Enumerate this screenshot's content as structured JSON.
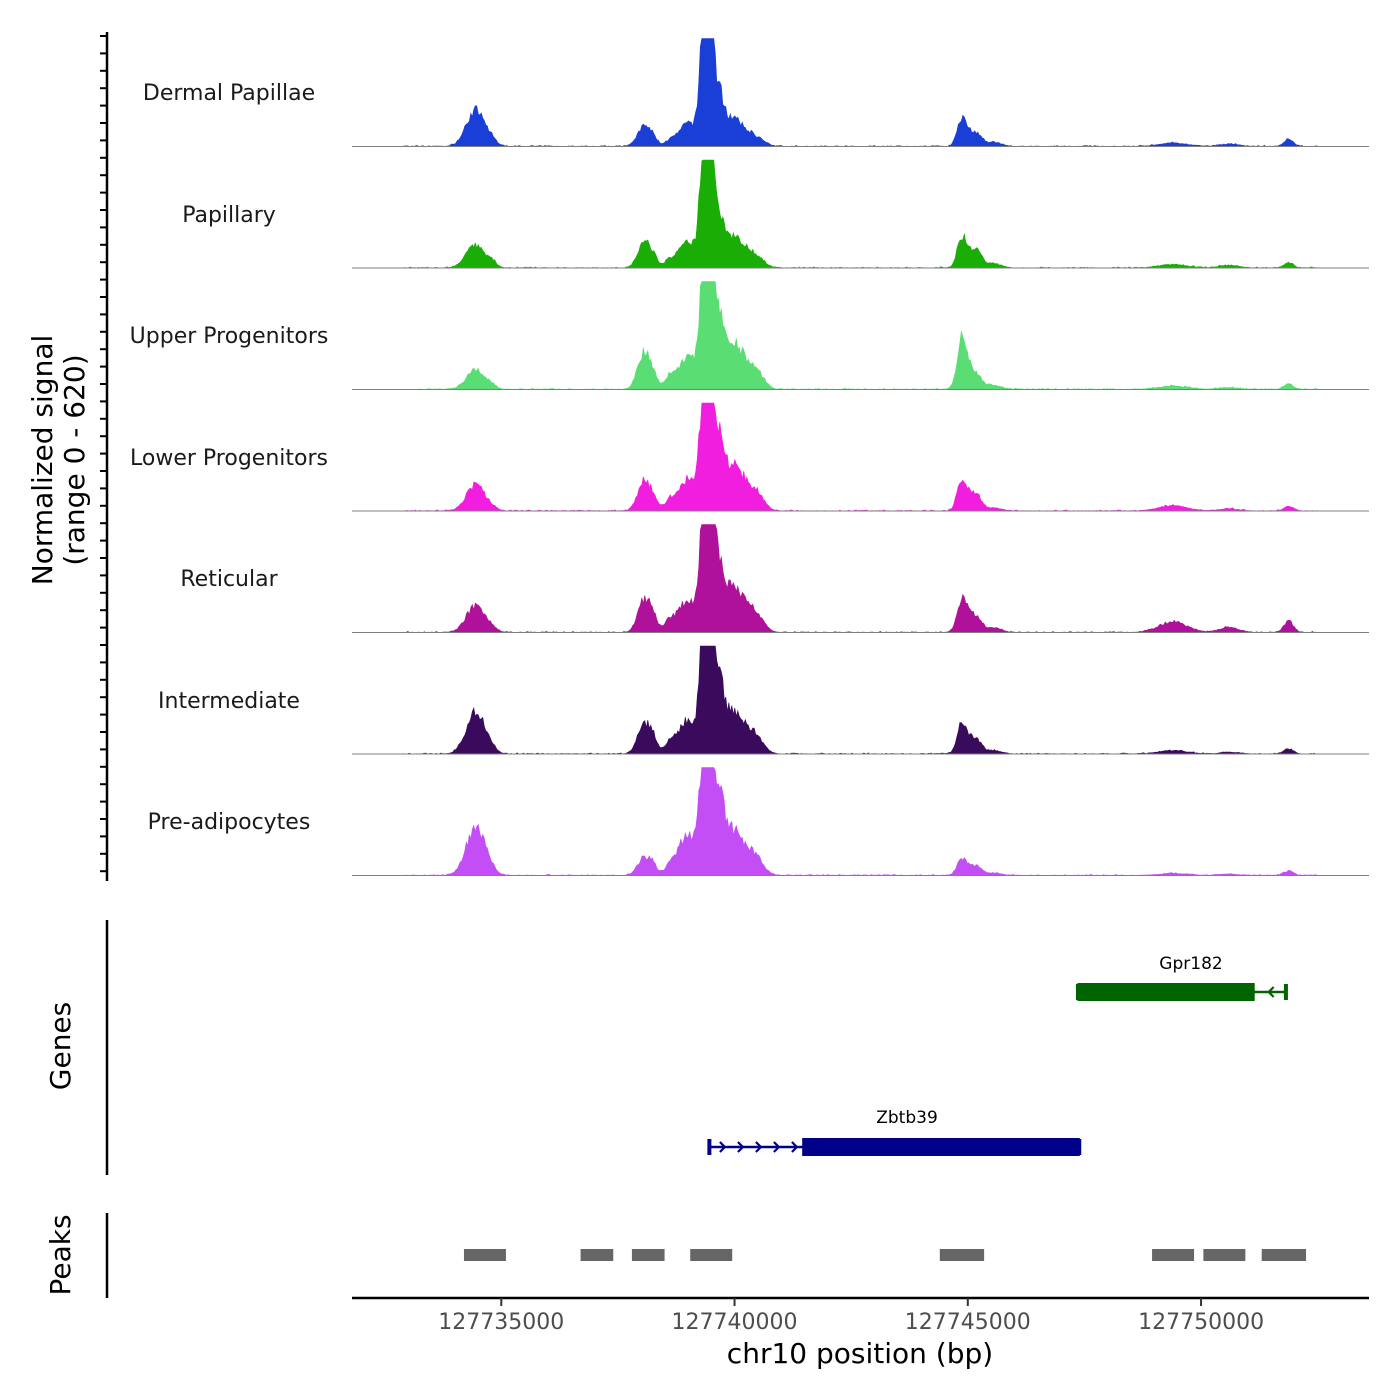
{
  "chart_data": {
    "type": "area",
    "title": "",
    "chromosome": "chr10",
    "xlabel": "chr10 position (bp)",
    "ylabel": "Normalized signal",
    "ylabel_range": "(range 0 - 620)",
    "xlim": [
      127731800,
      127753600
    ],
    "ylim": [
      0,
      620
    ],
    "x_ticks": [
      127735000,
      127740000,
      127745000,
      127750000
    ],
    "x_tick_labels": [
      "127735000",
      "127740000",
      "127745000",
      "127750000"
    ],
    "x_range_signal": [
      127732900,
      127752500
    ],
    "peak_shape_bp": [
      [
        127734450,
        200,
        0.3
      ],
      [
        127734800,
        100,
        0.04
      ],
      [
        127738050,
        130,
        0.22
      ],
      [
        127738250,
        100,
        0.12
      ],
      [
        127738600,
        100,
        0.08
      ],
      [
        127738900,
        180,
        0.12
      ],
      [
        127739100,
        200,
        0.16
      ],
      [
        127739280,
        60,
        0.55
      ],
      [
        127739380,
        60,
        0.75
      ],
      [
        127739430,
        70,
        1.0
      ],
      [
        127739520,
        60,
        0.6
      ],
      [
        127739650,
        110,
        0.42
      ],
      [
        127739900,
        200,
        0.22
      ],
      [
        127740200,
        230,
        0.14
      ],
      [
        127740500,
        150,
        0.06
      ],
      [
        127744850,
        90,
        0.12
      ],
      [
        127744950,
        120,
        0.13
      ],
      [
        127745200,
        110,
        0.12
      ],
      [
        127745550,
        160,
        0.04
      ],
      [
        127749400,
        300,
        0.06
      ],
      [
        127750600,
        200,
        0.04
      ],
      [
        127751880,
        100,
        0.08
      ]
    ],
    "tracks": [
      {
        "name": "Dermal Papillae",
        "color": "#1a3fd6",
        "multipliers": [
          1.1,
          1,
          0.8,
          0.6,
          0.5,
          0.7,
          1,
          1,
          1,
          1,
          1,
          1,
          0.9,
          0.8,
          0.7,
          1.2,
          1.1,
          0.9,
          0.9,
          0.5,
          0.5,
          0.8
        ]
      },
      {
        "name": "Papillary",
        "color": "#1aad05",
        "multipliers": [
          0.7,
          1,
          1,
          0.8,
          0.7,
          0.9,
          1,
          1,
          1,
          1,
          1,
          1,
          1,
          1,
          1,
          1.3,
          1.3,
          1.2,
          1,
          0.5,
          0.6,
          0.6
        ]
      },
      {
        "name": "Upper Progenitors",
        "color": "#5ade74",
        "multipliers": [
          0.6,
          0.6,
          1.5,
          0.9,
          1.2,
          1.2,
          1.3,
          1,
          0.9,
          1,
          1,
          1.3,
          1.4,
          1.5,
          1.5,
          2.2,
          2.2,
          1,
          1,
          0.5,
          0.4,
          0.6
        ]
      },
      {
        "name": "Lower Progenitors",
        "color": "#f11ee0",
        "multipliers": [
          0.8,
          0.5,
          1.2,
          0.9,
          1,
          1.1,
          1.3,
          1,
          0.8,
          1,
          1,
          1.3,
          1.4,
          1.5,
          1.5,
          1.4,
          1.3,
          1.1,
          0.7,
          0.8,
          0.5,
          0.5
        ]
      },
      {
        "name": "Reticular",
        "color": "#b0119a",
        "multipliers": [
          0.8,
          0.7,
          1.3,
          1.1,
          1.1,
          1.2,
          1.3,
          1,
          0.9,
          1,
          1,
          1.3,
          1.4,
          1.5,
          1.5,
          1.4,
          1.5,
          1.1,
          1,
          1.6,
          1.2,
          1.3
        ]
      },
      {
        "name": "Intermediate",
        "color": "#3a0b5c",
        "multipliers": [
          1.3,
          0.7,
          1.2,
          1.1,
          1,
          1.2,
          1.4,
          1,
          0.9,
          1,
          1,
          1.3,
          1.3,
          1.4,
          1.4,
          1.3,
          1.3,
          1,
          0.8,
          0.5,
          0.4,
          0.6
        ]
      },
      {
        "name": "Pre-adipocytes",
        "color": "#c34ef5",
        "multipliers": [
          1.5,
          0.7,
          0.7,
          0.7,
          0.8,
          1.5,
          1.6,
          1,
          0.9,
          1,
          1,
          1.4,
          1.5,
          1.4,
          1.5,
          0.7,
          0.7,
          0.6,
          0.6,
          0.3,
          0.3,
          0.5
        ]
      }
    ],
    "genes": [
      {
        "name": "Gpr182",
        "strand": "-",
        "color": "#006400",
        "start": 127747350,
        "end": 127751830,
        "thick_start": 127747350,
        "thick_end": 127751150
      },
      {
        "name": "Zbtb39",
        "strand": "+",
        "color": "#00008b",
        "start": 127739450,
        "end": 127747400,
        "thick_start": 127741450,
        "thick_end": 127747400
      }
    ],
    "peaks": [
      [
        127734200,
        127735100
      ],
      [
        127736700,
        127737400
      ],
      [
        127737800,
        127738500
      ],
      [
        127739050,
        127739950
      ],
      [
        127744400,
        127745350
      ],
      [
        127748950,
        127749850
      ],
      [
        127750050,
        127750950
      ],
      [
        127751300,
        127752250
      ]
    ],
    "panel_titles": {
      "genes": "Genes",
      "peaks": "Peaks"
    },
    "peak_color": "#666666",
    "baseline_color": "#7f7f7f"
  }
}
